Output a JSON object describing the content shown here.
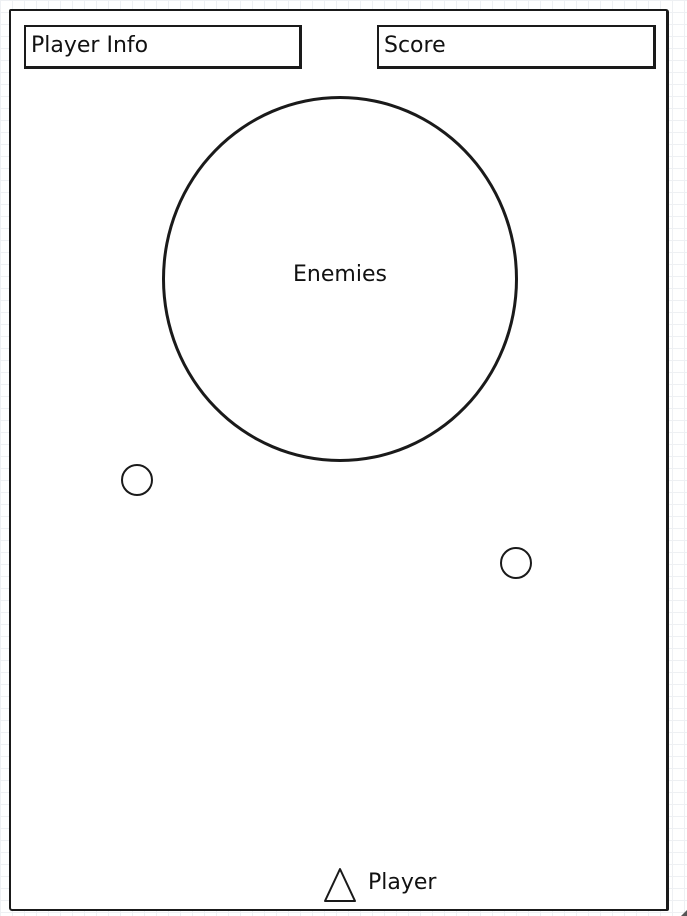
{
  "hud": {
    "player_info_label": "Player Info",
    "score_label": "Score"
  },
  "arena": {
    "enemies_label": "Enemies",
    "projectile_count": 2
  },
  "player": {
    "label": "Player",
    "icon": "triangle-icon"
  },
  "colors": {
    "stroke": "#1a1a1a",
    "background": "#ffffff",
    "grid": "#eef0f3"
  }
}
